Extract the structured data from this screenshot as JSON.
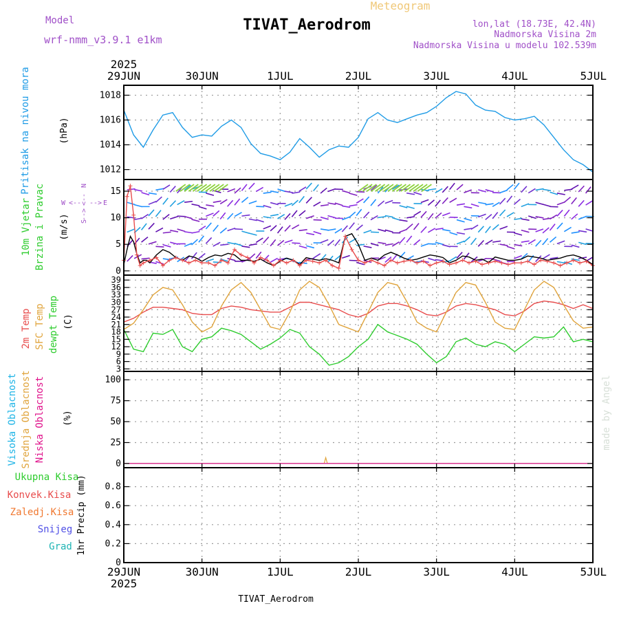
{
  "header": {
    "model_label": "Model",
    "model_name": "wrf-nmm_v3.9.1 e1km",
    "product": "Meteogram",
    "station_title": "TIVAT_Aerodrom",
    "coords": "lon,lat (18.73E, 42.4N)",
    "elevation": "Nadmorska Visina 2m",
    "model_elevation": "Nadmorska Visina u modelu 102.539m",
    "credit": "made by Angel"
  },
  "footer": {
    "station": "TIVAT_Aerodrom"
  },
  "time_axis": {
    "ticks": [
      "29JUN",
      "30JUN",
      "1JUL",
      "2JUL",
      "3JUL",
      "4JUL",
      "5JUL"
    ],
    "year": "2025",
    "range_hours": [
      0,
      144
    ]
  },
  "colors": {
    "pressure": "#1e9be6",
    "temp2m": "#e84c4c",
    "sfc_temp": "#e0a43c",
    "dewpoint": "#2ecc2e",
    "high_cloud": "#1eb4e6",
    "mid_cloud": "#e0a43c",
    "low_cloud": "#e0148c",
    "wind_speed": "#000000",
    "wind_gust": "#e84c4c",
    "header_purple": "#a050c8",
    "meteogram_label": "#f0c878"
  },
  "panels": {
    "pressure": {
      "labels": [
        "Pritisak na nivou mora"
      ],
      "unit": "(hPa)"
    },
    "wind": {
      "labels": [
        "10m Vjetar",
        "Brzina i Pravac"
      ],
      "unit": "(m/s)",
      "compass": [
        "N",
        "W",
        "E",
        "S"
      ]
    },
    "temperature": {
      "labels": [
        "2m Temp",
        "SFC Temp",
        "dewpt Temp"
      ],
      "unit": "(C)"
    },
    "cloud": {
      "labels": [
        "Visoka Oblacnost",
        "Srednja Oblacnost",
        "Niska Oblacnost"
      ],
      "unit": "(%)"
    },
    "precip": {
      "labels": [
        "Ukupna Kisa",
        "Konvek.Kisa",
        "Zaledj.Kisa",
        "Snijeg",
        "Grad"
      ],
      "unit": "1hr Precip (mm)"
    }
  },
  "chart_data": [
    {
      "type": "line",
      "panel": "pressure",
      "ylabel": "(hPa)",
      "ylim": [
        1011.2,
        1018.8
      ],
      "yticks": [
        1012,
        1014,
        1016,
        1018
      ],
      "series": [
        {
          "name": "Pritisak na nivou mora",
          "x": [
            0,
            3,
            6,
            9,
            12,
            15,
            18,
            21,
            24,
            27,
            30,
            33,
            36,
            39,
            42,
            45,
            48,
            51,
            54,
            57,
            60,
            63,
            66,
            69,
            72,
            75,
            78,
            81,
            84,
            87,
            90,
            93,
            96,
            99,
            102,
            105,
            108,
            111,
            114,
            117,
            120,
            123,
            126,
            129,
            132,
            135,
            138,
            141,
            144
          ],
          "values": [
            1016.8,
            1014.8,
            1013.8,
            1015.2,
            1016.4,
            1016.6,
            1015.4,
            1014.6,
            1014.8,
            1014.7,
            1015.5,
            1016.0,
            1015.4,
            1014.1,
            1013.3,
            1013.1,
            1012.8,
            1013.4,
            1014.5,
            1013.8,
            1013.0,
            1013.6,
            1013.9,
            1013.8,
            1014.6,
            1016.1,
            1016.6,
            1016.0,
            1015.8,
            1016.1,
            1016.4,
            1016.6,
            1017.1,
            1017.8,
            1018.3,
            1018.1,
            1017.2,
            1016.8,
            1016.7,
            1016.2,
            1016.0,
            1016.1,
            1016.3,
            1015.6,
            1014.6,
            1013.6,
            1012.8,
            1012.4,
            1011.8
          ]
        }
      ]
    },
    {
      "type": "line",
      "panel": "wind",
      "ylabel": "(m/s)",
      "ylim": [
        -0.8,
        17.2
      ],
      "yticks": [
        0,
        5,
        10,
        15
      ],
      "series": [
        {
          "name": "wind speed",
          "x": [
            0,
            1,
            2,
            3,
            4,
            5,
            6,
            7,
            8,
            10,
            12,
            14,
            16,
            18,
            20,
            22,
            24,
            26,
            28,
            30,
            32,
            34,
            36,
            38,
            40,
            42,
            44,
            46,
            48,
            50,
            52,
            54,
            56,
            58,
            60,
            62,
            64,
            66,
            68,
            70,
            72,
            74,
            76,
            78,
            80,
            82,
            84,
            86,
            88,
            90,
            92,
            94,
            96,
            98,
            100,
            102,
            104,
            106,
            108,
            110,
            112,
            114,
            116,
            118,
            120,
            122,
            124,
            126,
            128,
            130,
            132,
            134,
            136,
            138,
            140,
            142,
            144
          ],
          "values": [
            1.2,
            4.0,
            6.5,
            5.5,
            3.2,
            1.5,
            2.0,
            2.0,
            1.5,
            3.0,
            4.0,
            3.5,
            2.5,
            2.0,
            2.8,
            2.5,
            1.8,
            2.5,
            3.0,
            2.8,
            3.3,
            3.0,
            2.0,
            2.0,
            1.8,
            2.2,
            1.5,
            1.0,
            1.8,
            2.4,
            2.0,
            1.2,
            2.5,
            2.2,
            2.0,
            2.3,
            2.0,
            1.5,
            6.5,
            7.0,
            5.0,
            2.0,
            2.4,
            2.0,
            3.0,
            3.5,
            3.0,
            2.4,
            2.0,
            2.2,
            2.6,
            3.0,
            2.8,
            2.5,
            1.5,
            2.0,
            2.8,
            2.6,
            2.0,
            2.2,
            1.6,
            2.6,
            2.3,
            2.0,
            2.0,
            2.2,
            2.8,
            2.6,
            2.4,
            2.0,
            2.2,
            2.4,
            2.8,
            3.0,
            2.6,
            2.0,
            1.2
          ]
        },
        {
          "name": "wind gust",
          "x": [
            0,
            1,
            2,
            3,
            4,
            5,
            6,
            8,
            10,
            12,
            14,
            16,
            18,
            20,
            22,
            24,
            26,
            28,
            30,
            32,
            34,
            36,
            38,
            40,
            42,
            44,
            46,
            48,
            50,
            52,
            54,
            56,
            58,
            60,
            62,
            64,
            66,
            68,
            70,
            72,
            74,
            76,
            78,
            80,
            82,
            84,
            86,
            88,
            90,
            92,
            94,
            96,
            98,
            100,
            102,
            104,
            106,
            108,
            110,
            112,
            114,
            116,
            118,
            120,
            122,
            124,
            126,
            128,
            130,
            132,
            134,
            136,
            138,
            140,
            142,
            144
          ],
          "values": [
            2.0,
            14.0,
            16.0,
            10.5,
            3.0,
            1.0,
            1.5,
            2.0,
            2.5,
            1.0,
            2.0,
            2.5,
            2.0,
            1.5,
            2.0,
            1.5,
            1.5,
            1.0,
            2.0,
            1.5,
            4.0,
            3.0,
            2.5,
            1.5,
            2.5,
            2.0,
            1.0,
            2.0,
            1.5,
            2.0,
            1.0,
            2.0,
            1.8,
            1.5,
            2.0,
            1.0,
            0.5,
            6.5,
            4.0,
            2.0,
            1.5,
            2.0,
            1.5,
            1.0,
            2.0,
            1.5,
            1.8,
            2.0,
            1.5,
            1.8,
            1.0,
            1.5,
            1.8,
            1.2,
            1.5,
            2.0,
            1.5,
            1.8,
            1.2,
            1.5,
            1.8,
            1.5,
            1.2,
            1.5,
            1.5,
            1.8,
            1.2,
            2.0,
            1.8,
            1.5,
            1.0,
            1.5,
            2.0,
            1.5,
            1.8,
            1.0
          ]
        }
      ]
    },
    {
      "type": "line",
      "panel": "temperature",
      "ylabel": "(C)",
      "ylim": [
        2,
        41
      ],
      "yticks": [
        3,
        6,
        9,
        12,
        15,
        18,
        21,
        24,
        27,
        30,
        33,
        36,
        39
      ],
      "series": [
        {
          "name": "2m Temp",
          "x": [
            0,
            3,
            6,
            9,
            12,
            15,
            18,
            21,
            24,
            27,
            30,
            33,
            36,
            39,
            42,
            45,
            48,
            51,
            54,
            57,
            60,
            63,
            66,
            69,
            72,
            75,
            78,
            81,
            84,
            87,
            90,
            93,
            96,
            99,
            102,
            105,
            108,
            111,
            114,
            117,
            120,
            123,
            126,
            129,
            132,
            135,
            138,
            141,
            144
          ],
          "values": [
            22,
            23.5,
            26,
            28,
            28,
            27.5,
            27,
            25.5,
            25,
            25,
            27.5,
            28.5,
            28,
            27,
            26.5,
            26,
            26,
            28,
            30,
            30,
            29,
            28,
            27,
            25,
            24,
            25.5,
            28.5,
            29.5,
            29.5,
            28.5,
            27,
            25,
            24.5,
            26,
            28.5,
            29.5,
            29,
            28,
            27,
            25,
            24.5,
            26.5,
            29.5,
            30.5,
            30,
            29,
            27.5,
            29,
            27.5
          ]
        },
        {
          "name": "SFC Temp",
          "x": [
            0,
            3,
            6,
            9,
            12,
            15,
            18,
            21,
            24,
            27,
            30,
            33,
            36,
            39,
            42,
            45,
            48,
            51,
            54,
            57,
            60,
            63,
            66,
            69,
            72,
            75,
            78,
            81,
            84,
            87,
            90,
            93,
            96,
            99,
            102,
            105,
            108,
            111,
            114,
            117,
            120,
            123,
            126,
            129,
            132,
            135,
            138,
            141,
            144
          ],
          "values": [
            19,
            21.5,
            27,
            33,
            36,
            35,
            29,
            22,
            18,
            20,
            28.5,
            35,
            38,
            34,
            27,
            20,
            19,
            26,
            35,
            38.5,
            36,
            29,
            21,
            19.5,
            18,
            26,
            34,
            38,
            37,
            30,
            22,
            19.5,
            18,
            26,
            34,
            38,
            37,
            30,
            22,
            19.5,
            19,
            27,
            35,
            38.5,
            36,
            29,
            22.5,
            19.5,
            20
          ]
        },
        {
          "name": "dewpt Temp",
          "x": [
            0,
            3,
            6,
            9,
            12,
            15,
            18,
            21,
            24,
            27,
            30,
            33,
            36,
            39,
            42,
            45,
            48,
            51,
            54,
            57,
            60,
            63,
            66,
            69,
            72,
            75,
            78,
            81,
            84,
            87,
            90,
            93,
            96,
            99,
            102,
            105,
            108,
            111,
            114,
            117,
            120,
            123,
            126,
            129,
            132,
            135,
            138,
            141,
            144
          ],
          "values": [
            19,
            11,
            10,
            17.5,
            17,
            19,
            12,
            10,
            15,
            16,
            19.5,
            18.5,
            17,
            14,
            11,
            13,
            15.5,
            19,
            17.5,
            12,
            9,
            4.5,
            5.5,
            8,
            12,
            15,
            21,
            18,
            16.5,
            15,
            13,
            9,
            5.5,
            8,
            14,
            15.5,
            13,
            12,
            14,
            13,
            10,
            13,
            16,
            15.5,
            16,
            20,
            14,
            15,
            14
          ]
        }
      ]
    },
    {
      "type": "line",
      "panel": "cloud",
      "ylabel": "(%)",
      "ylim": [
        -5,
        110
      ],
      "yticks": [
        0,
        25,
        50,
        75,
        100
      ],
      "series": [
        {
          "name": "Visoka Oblacnost",
          "x": [
            0,
            144
          ],
          "values": [
            0,
            0
          ]
        },
        {
          "name": "Srednja Oblacnost",
          "x": [
            0,
            61.5,
            62,
            62.5,
            144
          ],
          "values": [
            0,
            0,
            7,
            0,
            0
          ]
        },
        {
          "name": "Niska Oblacnost",
          "x": [
            0,
            144
          ],
          "values": [
            0,
            0
          ]
        }
      ]
    },
    {
      "type": "bar",
      "panel": "precip",
      "ylabel": "1hr Precip (mm)",
      "ylim": [
        0,
        1
      ],
      "yticks": [
        0,
        0.2,
        0.4,
        0.6,
        0.8
      ],
      "series": [
        {
          "name": "Ukupna Kisa",
          "x": [
            0,
            144
          ],
          "values": [
            0,
            0
          ]
        },
        {
          "name": "Konvek.Kisa",
          "x": [
            0,
            144
          ],
          "values": [
            0,
            0
          ]
        },
        {
          "name": "Zaledj.Kisa",
          "x": [
            0,
            144
          ],
          "values": [
            0,
            0
          ]
        },
        {
          "name": "Snijeg",
          "x": [
            0,
            144
          ],
          "values": [
            0,
            0
          ]
        },
        {
          "name": "Grad",
          "x": [
            0,
            144
          ],
          "values": [
            0,
            0
          ]
        }
      ]
    }
  ]
}
